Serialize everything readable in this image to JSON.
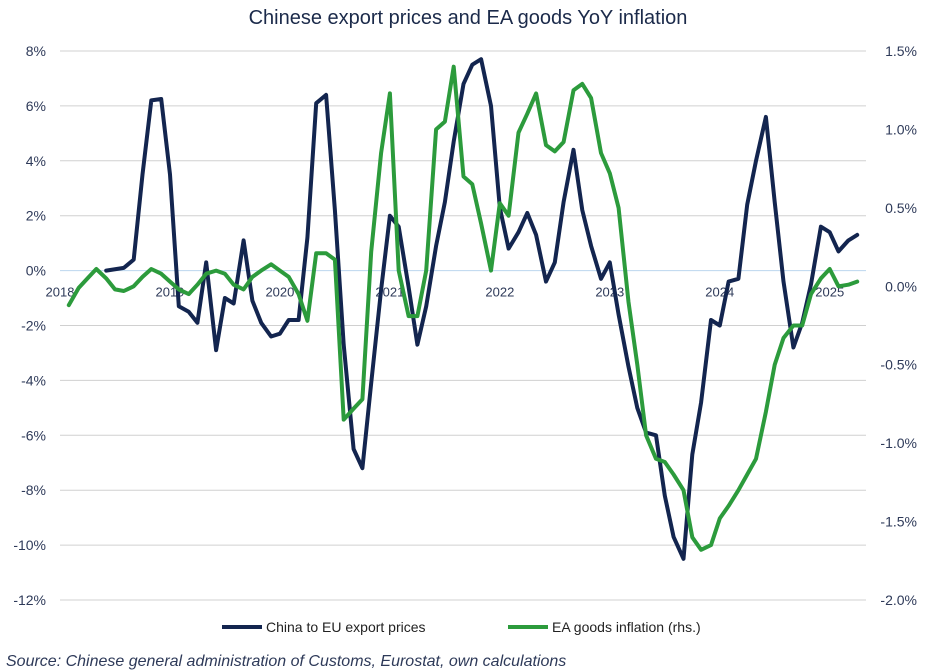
{
  "chart_data": {
    "type": "line",
    "title": "Chinese export prices and EA goods YoY inflation",
    "source": "Source: Chinese general administration of Customs, Eurostat, own calculations",
    "colors": {
      "china": "#13254f",
      "ea": "#2c9b3c"
    },
    "y_left": {
      "min": -12,
      "max": 8,
      "step": 2,
      "tick_labels": [
        "8%",
        "6%",
        "4%",
        "2%",
        "0%",
        "-2%",
        "-4%",
        "-6%",
        "-8%",
        "-10%",
        "-12%"
      ]
    },
    "y_right": {
      "min": -2.0,
      "max": 1.5,
      "step": 0.5,
      "tick_labels": [
        "1.5%",
        "1.0%",
        "0.5%",
        "0.0%",
        "-0.5%",
        "-1.0%",
        "-1.5%",
        "-2.0%"
      ]
    },
    "x_range": [
      2018.0,
      2025.33
    ],
    "year_labels": [
      "2018",
      "2019",
      "2020",
      "2021",
      "2022",
      "2023",
      "2024",
      "2025"
    ],
    "series": [
      {
        "name": "China to EU export prices",
        "axis": "left",
        "color": "#13254f",
        "points": [
          [
            2018.42,
            0.0
          ],
          [
            2018.58,
            0.1
          ],
          [
            2018.67,
            0.4
          ],
          [
            2018.75,
            3.5
          ],
          [
            2018.83,
            6.2
          ],
          [
            2018.92,
            6.25
          ],
          [
            2019.0,
            3.5
          ],
          [
            2019.08,
            -1.3
          ],
          [
            2019.17,
            -1.5
          ],
          [
            2019.25,
            -1.9
          ],
          [
            2019.33,
            0.3
          ],
          [
            2019.42,
            -2.9
          ],
          [
            2019.5,
            -1.0
          ],
          [
            2019.58,
            -1.2
          ],
          [
            2019.67,
            1.1
          ],
          [
            2019.75,
            -1.1
          ],
          [
            2019.83,
            -1.9
          ],
          [
            2019.92,
            -2.4
          ],
          [
            2020.0,
            -2.3
          ],
          [
            2020.08,
            -1.8
          ],
          [
            2020.17,
            -1.8
          ],
          [
            2020.25,
            1.2
          ],
          [
            2020.33,
            6.1
          ],
          [
            2020.42,
            6.4
          ],
          [
            2020.5,
            2.2
          ],
          [
            2020.58,
            -2.7
          ],
          [
            2020.67,
            -6.5
          ],
          [
            2020.75,
            -7.2
          ],
          [
            2020.83,
            -4.1
          ],
          [
            2020.92,
            -0.7
          ],
          [
            2021.0,
            2.0
          ],
          [
            2021.08,
            1.6
          ],
          [
            2021.17,
            -0.6
          ],
          [
            2021.25,
            -2.7
          ],
          [
            2021.33,
            -1.3
          ],
          [
            2021.42,
            0.9
          ],
          [
            2021.5,
            2.5
          ],
          [
            2021.58,
            4.7
          ],
          [
            2021.67,
            6.8
          ],
          [
            2021.75,
            7.5
          ],
          [
            2021.83,
            7.7
          ],
          [
            2021.92,
            6.0
          ],
          [
            2022.0,
            2.3
          ],
          [
            2022.08,
            0.8
          ],
          [
            2022.17,
            1.4
          ],
          [
            2022.25,
            2.1
          ],
          [
            2022.33,
            1.3
          ],
          [
            2022.42,
            -0.4
          ],
          [
            2022.5,
            0.3
          ],
          [
            2022.58,
            2.5
          ],
          [
            2022.67,
            4.4
          ],
          [
            2022.75,
            2.2
          ],
          [
            2022.83,
            0.9
          ],
          [
            2022.92,
            -0.3
          ],
          [
            2023.0,
            0.3
          ],
          [
            2023.08,
            -1.6
          ],
          [
            2023.17,
            -3.5
          ],
          [
            2023.25,
            -5.0
          ],
          [
            2023.33,
            -5.9
          ],
          [
            2023.42,
            -6.0
          ],
          [
            2023.5,
            -8.2
          ],
          [
            2023.58,
            -9.7
          ],
          [
            2023.67,
            -10.5
          ],
          [
            2023.75,
            -6.7
          ],
          [
            2023.83,
            -4.8
          ],
          [
            2023.92,
            -1.8
          ],
          [
            2024.0,
            -2.0
          ],
          [
            2024.08,
            -0.4
          ],
          [
            2024.17,
            -0.3
          ],
          [
            2024.25,
            2.4
          ],
          [
            2024.33,
            4.0
          ],
          [
            2024.42,
            5.6
          ],
          [
            2024.5,
            2.5
          ],
          [
            2024.58,
            -0.4
          ],
          [
            2024.67,
            -2.8
          ],
          [
            2024.75,
            -1.9
          ],
          [
            2024.83,
            -0.5
          ],
          [
            2024.92,
            1.6
          ],
          [
            2025.0,
            1.4
          ],
          [
            2025.08,
            0.7
          ],
          [
            2025.17,
            1.1
          ],
          [
            2025.25,
            1.3
          ]
        ]
      },
      {
        "name": "EA goods inflation (rhs.)",
        "axis": "right",
        "color": "#2c9b3c",
        "points": [
          [
            2018.08,
            -0.12
          ],
          [
            2018.17,
            -0.01
          ],
          [
            2018.25,
            0.05
          ],
          [
            2018.33,
            0.11
          ],
          [
            2018.42,
            0.05
          ],
          [
            2018.5,
            -0.02
          ],
          [
            2018.58,
            -0.03
          ],
          [
            2018.67,
            0.0
          ],
          [
            2018.75,
            0.06
          ],
          [
            2018.83,
            0.11
          ],
          [
            2018.92,
            0.08
          ],
          [
            2019.0,
            0.03
          ],
          [
            2019.08,
            -0.02
          ],
          [
            2019.17,
            -0.05
          ],
          [
            2019.25,
            0.01
          ],
          [
            2019.33,
            0.08
          ],
          [
            2019.42,
            0.1
          ],
          [
            2019.5,
            0.08
          ],
          [
            2019.58,
            0.01
          ],
          [
            2019.67,
            -0.02
          ],
          [
            2019.75,
            0.06
          ],
          [
            2019.83,
            0.1
          ],
          [
            2019.92,
            0.14
          ],
          [
            2020.0,
            0.1
          ],
          [
            2020.08,
            0.06
          ],
          [
            2020.17,
            -0.05
          ],
          [
            2020.25,
            -0.22
          ],
          [
            2020.33,
            0.21
          ],
          [
            2020.42,
            0.21
          ],
          [
            2020.5,
            0.17
          ],
          [
            2020.58,
            -0.85
          ],
          [
            2020.67,
            -0.78
          ],
          [
            2020.75,
            -0.72
          ],
          [
            2020.83,
            0.22
          ],
          [
            2020.92,
            0.85
          ],
          [
            2021.0,
            1.23
          ],
          [
            2021.08,
            0.1
          ],
          [
            2021.17,
            -0.19
          ],
          [
            2021.25,
            -0.19
          ],
          [
            2021.33,
            0.1
          ],
          [
            2021.42,
            1.0
          ],
          [
            2021.5,
            1.05
          ],
          [
            2021.58,
            1.4
          ],
          [
            2021.67,
            0.7
          ],
          [
            2021.75,
            0.65
          ],
          [
            2021.83,
            0.4
          ],
          [
            2021.92,
            0.1
          ],
          [
            2022.0,
            0.53
          ],
          [
            2022.08,
            0.45
          ],
          [
            2022.17,
            0.98
          ],
          [
            2022.25,
            1.1
          ],
          [
            2022.33,
            1.23
          ],
          [
            2022.42,
            0.9
          ],
          [
            2022.5,
            0.86
          ],
          [
            2022.58,
            0.92
          ],
          [
            2022.67,
            1.25
          ],
          [
            2022.75,
            1.29
          ],
          [
            2022.83,
            1.2
          ],
          [
            2022.92,
            0.85
          ],
          [
            2023.0,
            0.72
          ],
          [
            2023.08,
            0.5
          ],
          [
            2023.17,
            -0.1
          ],
          [
            2023.25,
            -0.5
          ],
          [
            2023.33,
            -0.95
          ],
          [
            2023.42,
            -1.1
          ],
          [
            2023.5,
            -1.12
          ],
          [
            2023.58,
            -1.2
          ],
          [
            2023.67,
            -1.3
          ],
          [
            2023.75,
            -1.6
          ],
          [
            2023.83,
            -1.68
          ],
          [
            2023.92,
            -1.65
          ],
          [
            2024.0,
            -1.48
          ],
          [
            2024.08,
            -1.4
          ],
          [
            2024.17,
            -1.3
          ],
          [
            2024.25,
            -1.2
          ],
          [
            2024.33,
            -1.1
          ],
          [
            2024.42,
            -0.8
          ],
          [
            2024.5,
            -0.5
          ],
          [
            2024.58,
            -0.33
          ],
          [
            2024.67,
            -0.25
          ],
          [
            2024.75,
            -0.25
          ],
          [
            2024.83,
            -0.05
          ],
          [
            2024.92,
            0.05
          ],
          [
            2025.0,
            0.11
          ],
          [
            2025.08,
            0.0
          ],
          [
            2025.17,
            0.01
          ],
          [
            2025.25,
            0.03
          ]
        ]
      }
    ]
  }
}
